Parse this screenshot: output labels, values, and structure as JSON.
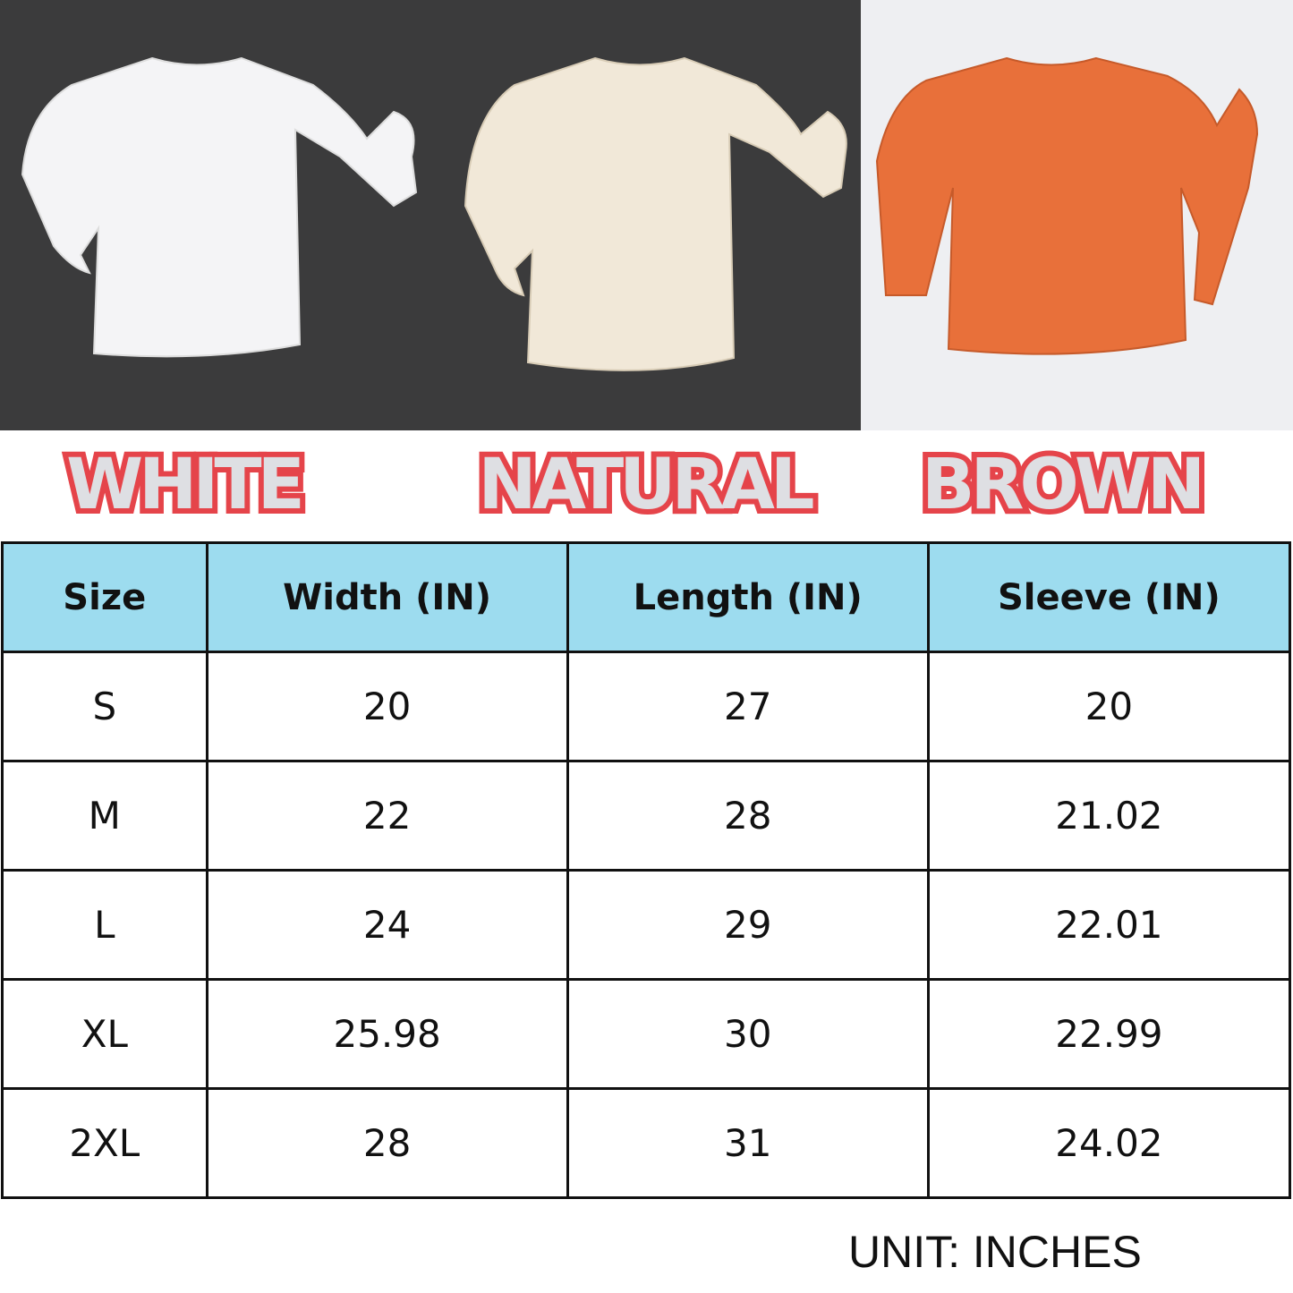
{
  "products": [
    {
      "label": "WHITE",
      "shirt_color": "#f4f4f6"
    },
    {
      "label": "NATURAL",
      "shirt_color": "#f1e8d8"
    },
    {
      "label": "BROWN",
      "shirt_color": "#e8703a"
    }
  ],
  "label_colors": {
    "fill": "#dedfe3",
    "outline": "#e5444a"
  },
  "table": {
    "header_bg": "#9ddcef",
    "headers": [
      "Size",
      "Width (IN)",
      "Length (IN)",
      "Sleeve (IN)"
    ],
    "rows": [
      [
        "S",
        "20",
        "27",
        "20"
      ],
      [
        "M",
        "22",
        "28",
        "21.02"
      ],
      [
        "L",
        "24",
        "29",
        "22.01"
      ],
      [
        "XL",
        "25.98",
        "30",
        "22.99"
      ],
      [
        "2XL",
        "28",
        "31",
        "24.02"
      ]
    ]
  },
  "unit_note": "UNIT: INCHES"
}
